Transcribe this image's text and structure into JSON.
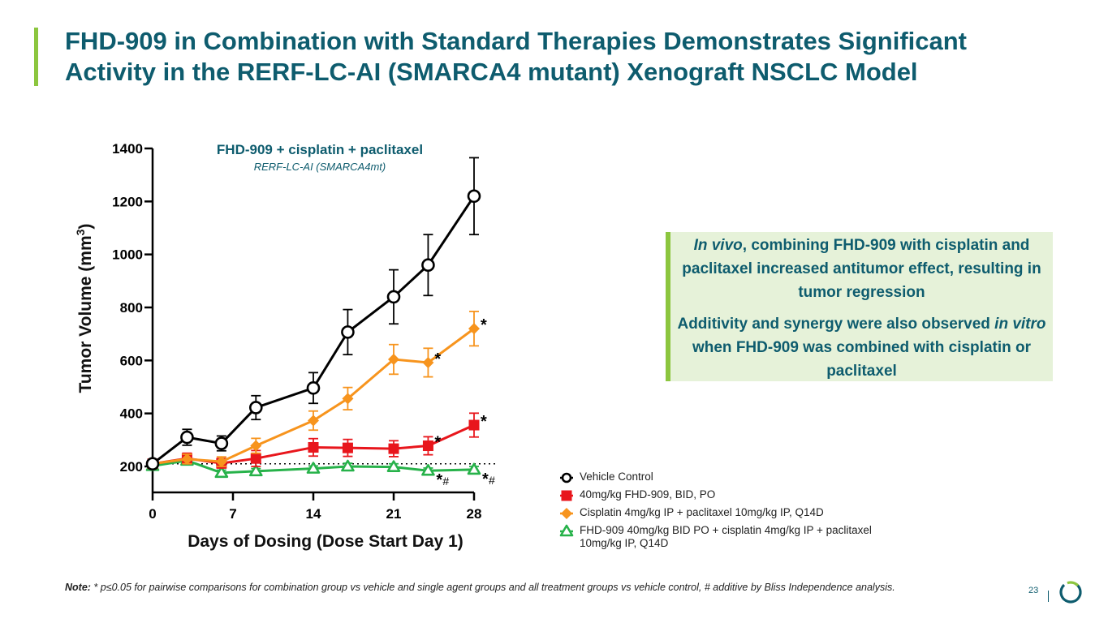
{
  "slide": {
    "title_line1": "FHD-909 in Combination with Standard Therapies Demonstrates Significant",
    "title_line2": "Activity in the RERF-LC-AI (SMARCA4 mutant) Xenograft NSCLC Model",
    "page_number": "23",
    "accent_color": "#8cc63f",
    "title_color": "#0e5c6e"
  },
  "callout": {
    "p1_em": "In vivo",
    "p1_rest": ", combining FHD-909 with cisplatin and paclitaxel increased antitumor effect, resulting in tumor regression",
    "p2_a": "Additivity and synergy were also observed ",
    "p2_em": "in vitro",
    "p2_b": " when FHD-909 was combined with cisplatin or paclitaxel"
  },
  "note": {
    "label": "Note:",
    "text": " * p≤0.05 for pairwise comparisons for combination group vs vehicle and single agent groups and all treatment groups vs vehicle control, # additive by Bliss Independence analysis."
  },
  "chart_data": {
    "type": "line",
    "title": "FHD-909 + cisplatin + paclitaxel",
    "subtitle": "RERF-LC-AI (SMARCA4mt)",
    "xlabel": "Days of Dosing (Dose Start Day 1)",
    "ylabel": "Tumor Volume (mm",
    "ylabel_sup": "3",
    "ylabel_close": ")",
    "xlim": [
      0,
      28
    ],
    "ylim": [
      100,
      1400
    ],
    "xticks": [
      0,
      7,
      14,
      21,
      28
    ],
    "yticks": [
      200,
      400,
      600,
      800,
      1000,
      1200,
      1400
    ],
    "baseline_value": 210,
    "series": [
      {
        "name": "Vehicle Control",
        "color": "#000000",
        "marker": "circle-open",
        "x": [
          0,
          3,
          6,
          9,
          14,
          17,
          21,
          24,
          28
        ],
        "y": [
          210,
          310,
          287,
          422,
          496,
          707,
          840,
          960,
          1220
        ],
        "err": [
          10,
          30,
          28,
          45,
          58,
          85,
          102,
          115,
          145
        ]
      },
      {
        "name": "40mg/kg FHD-909, BID, PO",
        "color": "#e8161c",
        "marker": "square",
        "x": [
          0,
          3,
          6,
          9,
          14,
          17,
          21,
          24,
          28
        ],
        "y": [
          210,
          230,
          212,
          230,
          272,
          270,
          267,
          278,
          356
        ],
        "err": [
          10,
          20,
          18,
          30,
          33,
          32,
          30,
          34,
          45
        ]
      },
      {
        "name": "Cisplatin 4mg/kg IP + paclitaxel 10mg/kg IP, Q14D",
        "color": "#f7941d",
        "marker": "diamond",
        "x": [
          0,
          3,
          6,
          9,
          14,
          17,
          21,
          24,
          28
        ],
        "y": [
          210,
          228,
          218,
          278,
          373,
          456,
          604,
          592,
          720
        ],
        "err": [
          10,
          18,
          18,
          28,
          36,
          42,
          56,
          54,
          65
        ]
      },
      {
        "name": "FHD-909 40mg/kg BID PO + cisplatin 4mg/kg IP + paclitaxel 10mg/kg IP, Q14D",
        "color": "#27b24a",
        "marker": "triangle-open",
        "x": [
          0,
          3,
          6,
          9,
          14,
          17,
          21,
          24,
          28
        ],
        "y": [
          202,
          222,
          176,
          182,
          192,
          200,
          198,
          184,
          188
        ],
        "err": [
          8,
          12,
          10,
          10,
          10,
          12,
          12,
          10,
          12
        ]
      }
    ],
    "annotations": [
      {
        "text": "*",
        "x": 28,
        "y": 720,
        "series": 2
      },
      {
        "text": "*",
        "x": 24,
        "y": 592,
        "series": 2
      },
      {
        "text": "*",
        "x": 28,
        "y": 356,
        "series": 1
      },
      {
        "text": "*",
        "x": 24,
        "y": 278,
        "series": 1
      },
      {
        "text": "*",
        "x": 24,
        "y": 184,
        "series": 3
      },
      {
        "text": "#",
        "x": 24,
        "y": 184,
        "series": 3
      },
      {
        "text": "*",
        "x": 28,
        "y": 188,
        "series": 3
      },
      {
        "text": "#",
        "x": 28,
        "y": 188,
        "series": 3
      }
    ]
  }
}
